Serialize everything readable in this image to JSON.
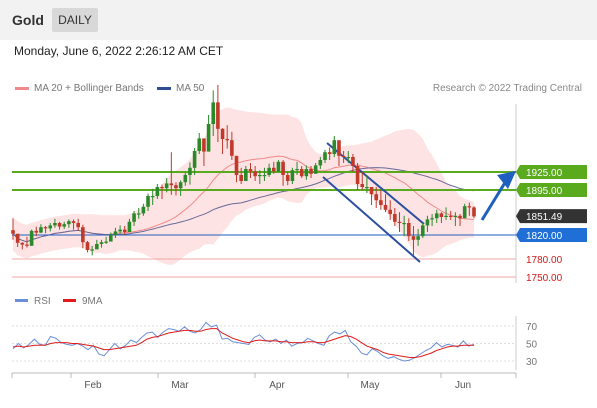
{
  "header": {
    "instrument": "Gold",
    "period": "DAILY"
  },
  "timestamp": "Monday, June 6, 2022 2:26:12 AM CET",
  "legend": [
    {
      "label": "MA 20 + Bollinger Bands",
      "color": "#f08a8a"
    },
    {
      "label": "MA 50",
      "color": "#2e4f8f"
    }
  ],
  "copyright": "Research © 2022 Trading Central",
  "colors": {
    "bullish": "#2a8a2a",
    "bearish": "#c0392b",
    "resistance": "#5aaa1e",
    "support_line": "#1f5fbf",
    "support_label": "#1f6fd6",
    "stop_line": "#f2a7a7",
    "stop_text": "#d01818",
    "current_label": "#333333",
    "band_fill": "#fcd9d9",
    "ma20": "#f08a8a",
    "ma50": "#6a6a9a",
    "channel": "#2e4f9f",
    "rsi": "#6b8fd6",
    "rsi_ma": "#e01b1b"
  },
  "chart_data": {
    "type": "candlestick",
    "x_axis_labels": [
      "Feb",
      "Mar",
      "Apr",
      "May",
      "Jun"
    ],
    "levels": [
      {
        "label": "1925.00",
        "kind": "resistance",
        "value": 1925
      },
      {
        "label": "1895.00",
        "kind": "resistance",
        "value": 1895
      },
      {
        "label": "1851.49",
        "kind": "current",
        "value": 1851.49
      },
      {
        "label": "1820.00",
        "kind": "support",
        "value": 1820
      },
      {
        "label": "1780.00",
        "kind": "stop",
        "value": 1780
      },
      {
        "label": "1750.00",
        "kind": "stop",
        "value": 1750
      }
    ],
    "arrow_target": 1925,
    "rsi": {
      "legend": [
        {
          "label": "RSI",
          "color": "#6b8fd6"
        },
        {
          "label": "9MA",
          "color": "#e01b1b"
        }
      ],
      "y_ticks": [
        {
          "label": "70",
          "value": 70
        },
        {
          "label": "50",
          "value": 50
        },
        {
          "label": "30",
          "value": 30
        }
      ],
      "rsi_values": [
        44,
        50,
        45,
        49,
        55,
        49,
        48,
        58,
        56,
        51,
        49,
        48,
        50,
        47,
        43,
        48,
        38,
        36,
        43,
        50,
        44,
        48,
        54,
        51,
        57,
        62,
        63,
        57,
        63,
        67,
        66,
        64,
        69,
        64,
        62,
        66,
        74,
        69,
        71,
        55,
        56,
        52,
        51,
        50,
        49,
        57,
        60,
        54,
        52,
        55,
        50,
        54,
        47,
        50,
        51,
        56,
        53,
        50,
        48,
        59,
        63,
        61,
        65,
        52,
        47,
        39,
        37,
        44,
        41,
        36,
        33,
        35,
        32,
        30,
        31,
        34,
        38,
        42,
        45,
        51,
        46,
        49,
        48,
        46,
        53,
        47,
        49
      ],
      "ma_values": [
        46,
        47,
        46,
        47,
        48,
        48,
        48,
        50,
        51,
        51,
        51,
        50,
        50,
        49,
        48,
        47,
        45,
        43,
        43,
        44,
        45,
        46,
        47,
        48,
        51,
        55,
        57,
        58,
        60,
        62,
        63,
        64,
        65,
        65,
        64,
        64,
        66,
        67,
        67,
        62,
        59,
        56,
        54,
        52,
        51,
        53,
        54,
        53,
        53,
        53,
        52,
        52,
        51,
        51,
        51,
        52,
        52,
        51,
        51,
        53,
        55,
        57,
        59,
        58,
        55,
        51,
        47,
        45,
        43,
        40,
        38,
        37,
        36,
        35,
        34,
        34,
        35,
        37,
        39,
        42,
        44,
        46,
        47,
        47,
        48,
        48,
        48
      ]
    },
    "candles": [
      [
        1848,
        1812,
        1822
      ],
      [
        1822,
        1800,
        1807
      ],
      [
        1808,
        1796,
        1804
      ],
      [
        1817,
        1799,
        1802
      ],
      [
        1829,
        1802,
        1827
      ],
      [
        1834,
        1818,
        1824
      ],
      [
        1838,
        1823,
        1833
      ],
      [
        1835,
        1823,
        1831
      ],
      [
        1840,
        1826,
        1836
      ],
      [
        1847,
        1832,
        1840
      ],
      [
        1842,
        1829,
        1834
      ],
      [
        1842,
        1830,
        1838
      ],
      [
        1846,
        1832,
        1843
      ],
      [
        1846,
        1829,
        1840
      ],
      [
        1847,
        1827,
        1833
      ],
      [
        1837,
        1798,
        1808
      ],
      [
        1810,
        1791,
        1795
      ],
      [
        1802,
        1786,
        1796
      ],
      [
        1812,
        1797,
        1805
      ],
      [
        1812,
        1799,
        1808
      ],
      [
        1817,
        1805,
        1809
      ],
      [
        1824,
        1810,
        1820
      ],
      [
        1832,
        1815,
        1826
      ],
      [
        1836,
        1822,
        1829
      ],
      [
        1835,
        1820,
        1825
      ],
      [
        1847,
        1826,
        1842
      ],
      [
        1860,
        1835,
        1856
      ],
      [
        1865,
        1847,
        1856
      ],
      [
        1872,
        1852,
        1867
      ],
      [
        1889,
        1860,
        1885
      ],
      [
        1897,
        1870,
        1885
      ],
      [
        1905,
        1880,
        1900
      ],
      [
        1904,
        1880,
        1898
      ],
      [
        1915,
        1891,
        1906
      ],
      [
        1958,
        1887,
        1903
      ],
      [
        1908,
        1886,
        1898
      ],
      [
        1911,
        1885,
        1908
      ],
      [
        1924,
        1902,
        1920
      ],
      [
        1941,
        1904,
        1932
      ],
      [
        1965,
        1920,
        1960
      ],
      [
        1990,
        1955,
        1981
      ],
      [
        1974,
        1935,
        1959
      ],
      [
        2020,
        1960,
        2005
      ],
      [
        2061,
        1985,
        2041
      ],
      [
        2070,
        1975,
        1997
      ],
      [
        1998,
        1955,
        1980
      ],
      [
        2003,
        1964,
        1978
      ],
      [
        1992,
        1945,
        1952
      ],
      [
        1950,
        1908,
        1920
      ],
      [
        1932,
        1905,
        1910
      ],
      [
        1935,
        1914,
        1930
      ],
      [
        1940,
        1915,
        1926
      ],
      [
        1935,
        1910,
        1918
      ],
      [
        1928,
        1905,
        1920
      ],
      [
        1932,
        1910,
        1920
      ],
      [
        1939,
        1917,
        1932
      ],
      [
        1942,
        1922,
        1926
      ],
      [
        1945,
        1925,
        1942
      ],
      [
        1945,
        1902,
        1920
      ],
      [
        1925,
        1903,
        1910
      ],
      [
        1932,
        1905,
        1928
      ],
      [
        1942,
        1920,
        1930
      ],
      [
        1935,
        1915,
        1918
      ],
      [
        1936,
        1912,
        1930
      ],
      [
        1935,
        1915,
        1922
      ],
      [
        1940,
        1925,
        1936
      ],
      [
        1950,
        1930,
        1945
      ],
      [
        1962,
        1940,
        1958
      ],
      [
        1966,
        1945,
        1955
      ],
      [
        1985,
        1950,
        1978
      ],
      [
        1972,
        1935,
        1952
      ],
      [
        1960,
        1940,
        1950
      ],
      [
        1960,
        1940,
        1950
      ],
      [
        1955,
        1925,
        1935
      ],
      [
        1940,
        1895,
        1905
      ],
      [
        1925,
        1895,
        1900
      ],
      [
        1920,
        1890,
        1900
      ],
      [
        1900,
        1870,
        1888
      ],
      [
        1900,
        1865,
        1878
      ],
      [
        1895,
        1862,
        1870
      ],
      [
        1888,
        1858,
        1862
      ],
      [
        1878,
        1845,
        1855
      ],
      [
        1865,
        1835,
        1842
      ],
      [
        1858,
        1825,
        1840
      ],
      [
        1852,
        1818,
        1840
      ],
      [
        1848,
        1810,
        1818
      ],
      [
        1835,
        1786,
        1812
      ],
      [
        1830,
        1802,
        1818
      ],
      [
        1840,
        1815,
        1836
      ],
      [
        1852,
        1825,
        1846
      ],
      [
        1855,
        1835,
        1848
      ],
      [
        1862,
        1840,
        1856
      ],
      [
        1858,
        1840,
        1850
      ],
      [
        1866,
        1845,
        1852
      ],
      [
        1860,
        1845,
        1850
      ],
      [
        1858,
        1835,
        1852
      ],
      [
        1855,
        1835,
        1848
      ],
      [
        1872,
        1848,
        1868
      ],
      [
        1874,
        1852,
        1866
      ],
      [
        1868,
        1848,
        1851
      ]
    ]
  }
}
